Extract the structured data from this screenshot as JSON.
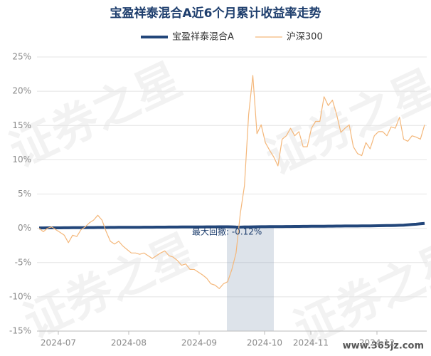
{
  "chart_data": {
    "type": "line",
    "title": "宝盈祥泰混合A近6个月累计收益率走势",
    "x_labels": [
      "2024-07",
      "2024-08",
      "2024-09",
      "2024-10",
      "2024-11",
      "2024-12"
    ],
    "series": [
      {
        "name": "宝盈祥泰混合A",
        "color": "#22467a",
        "width": 4,
        "values": [
          0.05,
          0.05,
          0.06,
          0.06,
          0.07,
          0.07,
          0.08,
          0.08,
          0.09,
          0.09,
          0.1,
          0.1,
          0.11,
          0.11,
          0.12,
          0.12,
          0.12,
          0.13,
          0.13,
          0.14,
          0.14,
          0.14,
          0.15,
          0.15,
          0.15,
          0.16,
          0.16,
          0.16,
          0.17,
          0.17,
          0.17,
          0.18,
          0.18,
          0.18,
          0.19,
          0.19,
          0.19,
          0.2,
          0.2,
          0.2,
          0.21,
          0.21,
          0.21,
          0.22,
          0.22,
          0.22,
          0.21,
          0.18,
          0.17,
          0.19,
          0.2,
          0.21,
          0.22,
          0.23,
          0.23,
          0.24,
          0.24,
          0.25,
          0.25,
          0.26,
          0.26,
          0.27,
          0.27,
          0.28,
          0.28,
          0.29,
          0.29,
          0.3,
          0.3,
          0.31,
          0.31,
          0.32,
          0.32,
          0.33,
          0.33,
          0.34,
          0.34,
          0.35,
          0.35,
          0.36,
          0.37,
          0.38,
          0.39,
          0.4,
          0.41,
          0.42,
          0.44,
          0.46,
          0.5,
          0.55,
          0.6,
          0.66,
          0.72
        ]
      },
      {
        "name": "沪深300",
        "color": "#f4b77a",
        "width": 1.2,
        "values": [
          0,
          -0.5,
          0,
          0.2,
          -0.2,
          -0.6,
          -1.0,
          -2.1,
          -1.0,
          -1.2,
          -0.2,
          0.2,
          0.8,
          1.2,
          1.9,
          1.2,
          -0.5,
          -1.9,
          -2.3,
          -1.9,
          -2.6,
          -3.1,
          -3.6,
          -3.6,
          -3.8,
          -3.6,
          -4.0,
          -4.4,
          -4.0,
          -3.6,
          -3.3,
          -4.0,
          -4.2,
          -4.7,
          -5.4,
          -5.2,
          -6.0,
          -6.0,
          -6.4,
          -6.8,
          -7.3,
          -8.1,
          -8.3,
          -8.8,
          -8.1,
          -7.8,
          -6.0,
          -3.6,
          2.1,
          6.2,
          16.6,
          22.3,
          13.8,
          15.1,
          12.5,
          11.4,
          10.4,
          9.1,
          13.0,
          13.5,
          14.6,
          13.5,
          14.1,
          11.9,
          11.9,
          14.6,
          15.6,
          15.6,
          19.2,
          17.9,
          18.7,
          16.6,
          14.0,
          14.6,
          15.1,
          11.9,
          10.9,
          10.6,
          12.5,
          11.6,
          13.5,
          14.1,
          14.1,
          13.5,
          14.8,
          14.6,
          16.2,
          13.0,
          12.7,
          13.5,
          13.3,
          13.0,
          15.1
        ]
      }
    ],
    "ylim": [
      -15,
      25
    ],
    "yticks": [
      {
        "value": -15,
        "label": "-15%"
      },
      {
        "value": -10,
        "label": "-10%"
      },
      {
        "value": -5,
        "label": "-5%"
      },
      {
        "value": 0,
        "label": "0%"
      },
      {
        "value": 5,
        "label": "5%"
      },
      {
        "value": 10,
        "label": "10%"
      },
      {
        "value": 15,
        "label": "15%"
      },
      {
        "value": 20,
        "label": "20%"
      },
      {
        "value": 25,
        "label": "25%"
      }
    ],
    "grid": true,
    "annotation": "最大回撤: -0.12%",
    "watermark": "证券之星",
    "source": "www.365jz.com"
  }
}
